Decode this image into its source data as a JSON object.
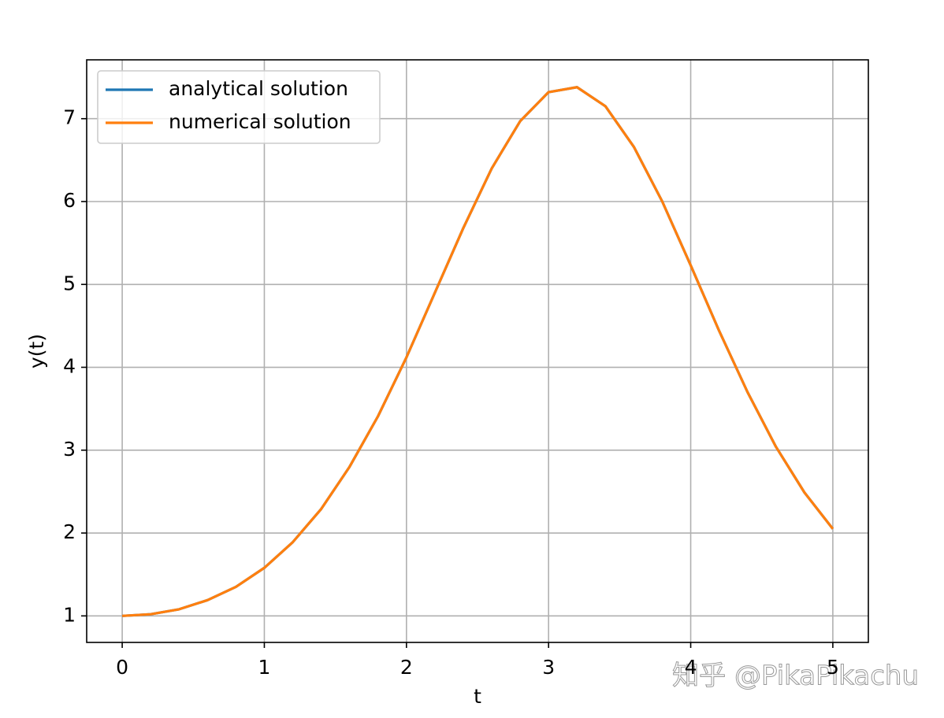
{
  "chart_data": {
    "type": "line",
    "xlabel": "t",
    "ylabel": "y(t)",
    "x": [
      0,
      0.2,
      0.4,
      0.6,
      0.8,
      1.0,
      1.2,
      1.4,
      1.6,
      1.8,
      2.0,
      2.2,
      2.4,
      2.6,
      2.8,
      3.0,
      3.2,
      3.4,
      3.6,
      3.8,
      4.0,
      4.2,
      4.4,
      4.6,
      4.8,
      5.0
    ],
    "series": [
      {
        "name": "analytical solution",
        "color": "#1f77b4",
        "values": [
          1.0,
          1.02,
          1.08,
          1.19,
          1.35,
          1.58,
          1.89,
          2.29,
          2.8,
          3.41,
          4.12,
          4.9,
          5.68,
          6.4,
          6.97,
          7.32,
          7.38,
          7.15,
          6.66,
          6.0,
          5.23,
          4.44,
          3.7,
          3.04,
          2.49,
          2.05
        ]
      },
      {
        "name": "numerical solution",
        "color": "#ff7f0e",
        "values": [
          1.0,
          1.02,
          1.08,
          1.19,
          1.35,
          1.58,
          1.89,
          2.29,
          2.8,
          3.41,
          4.12,
          4.9,
          5.68,
          6.4,
          6.97,
          7.32,
          7.38,
          7.15,
          6.66,
          6.0,
          5.23,
          4.44,
          3.7,
          3.04,
          2.49,
          2.05
        ]
      }
    ],
    "xlim": [
      -0.25,
      5.25
    ],
    "ylim": [
      0.68,
      7.71
    ],
    "xticks": [
      0,
      1,
      2,
      3,
      4,
      5
    ],
    "yticks": [
      1,
      2,
      3,
      4,
      5,
      6,
      7
    ],
    "grid": true,
    "legend": "upper-left",
    "watermark": "知乎 @PikaPikachu"
  }
}
